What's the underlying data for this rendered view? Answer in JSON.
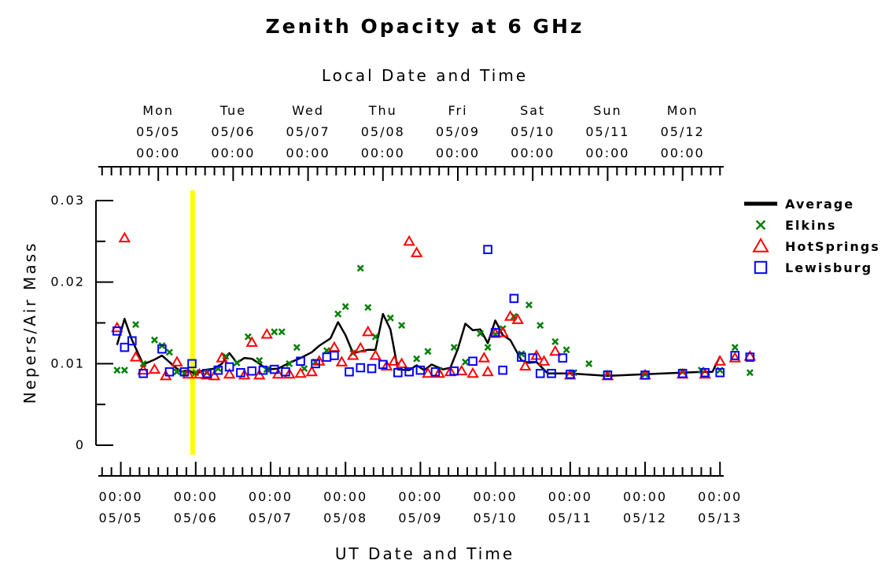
{
  "chart_data": {
    "type": "scatter",
    "title": "Zenith Opacity at 6 GHz",
    "top_axis_title": "Local Date and Time",
    "bottom_axis_title": "UT Date and Time",
    "ylabel": "Nepers/Air Mass",
    "ylim": [
      0,
      0.03
    ],
    "y_ticks": [
      {
        "value": 0,
        "label": "0"
      },
      {
        "value": 0.01,
        "label": "0.01"
      },
      {
        "value": 0.02,
        "label": "0.02"
      },
      {
        "value": 0.03,
        "label": "0.03"
      }
    ],
    "xlim": [
      "2025-05-04 16:00",
      "2025-05-13 00:00"
    ],
    "bottom_ticks": [
      {
        "day": 1,
        "time": "00:00",
        "date": "05/05"
      },
      {
        "day": 2,
        "time": "00:00",
        "date": "05/06"
      },
      {
        "day": 3,
        "time": "00:00",
        "date": "05/07"
      },
      {
        "day": 4,
        "time": "00:00",
        "date": "05/08"
      },
      {
        "day": 5,
        "time": "00:00",
        "date": "05/09"
      },
      {
        "day": 6,
        "time": "00:00",
        "date": "05/10"
      },
      {
        "day": 7,
        "time": "00:00",
        "date": "05/11"
      },
      {
        "day": 8,
        "time": "00:00",
        "date": "05/12"
      },
      {
        "day": 9,
        "time": "00:00",
        "date": "05/13"
      }
    ],
    "top_ticks": [
      {
        "day": 1.5,
        "weekday": "Mon",
        "date": "05/05",
        "time": "00:00"
      },
      {
        "day": 2.5,
        "weekday": "Tue",
        "date": "05/06",
        "time": "00:00"
      },
      {
        "day": 3.5,
        "weekday": "Wed",
        "date": "05/07",
        "time": "00:00"
      },
      {
        "day": 4.5,
        "weekday": "Thu",
        "date": "05/08",
        "time": "00:00"
      },
      {
        "day": 5.5,
        "weekday": "Fri",
        "date": "05/09",
        "time": "00:00"
      },
      {
        "day": 6.5,
        "weekday": "Sat",
        "date": "05/10",
        "time": "00:00"
      },
      {
        "day": 7.5,
        "weekday": "Sun",
        "date": "05/11",
        "time": "00:00"
      },
      {
        "day": 8.5,
        "weekday": "Mon",
        "date": "05/12",
        "time": "00:00"
      }
    ],
    "grid": false,
    "legend_position": "right",
    "current_time_marker": {
      "x": "2025-05-05 23:00",
      "color": "#ffff00"
    },
    "series": [
      {
        "name": "Average",
        "style": "line",
        "color": "#000000",
        "points": [
          [
            0.95,
            0.0123
          ],
          [
            1.05,
            0.0155
          ],
          [
            1.15,
            0.0129
          ],
          [
            1.3,
            0.0099
          ],
          [
            1.45,
            0.0105
          ],
          [
            1.55,
            0.011
          ],
          [
            1.65,
            0.0102
          ],
          [
            1.8,
            0.009
          ],
          [
            1.9,
            0.0092
          ],
          [
            2.0,
            0.0087
          ],
          [
            2.1,
            0.0092
          ],
          [
            2.25,
            0.0094
          ],
          [
            2.35,
            0.01
          ],
          [
            2.45,
            0.0113
          ],
          [
            2.55,
            0.0101
          ],
          [
            2.65,
            0.0107
          ],
          [
            2.75,
            0.0106
          ],
          [
            2.85,
            0.01
          ],
          [
            2.95,
            0.0093
          ],
          [
            3.1,
            0.0094
          ],
          [
            3.25,
            0.0101
          ],
          [
            3.4,
            0.0107
          ],
          [
            3.55,
            0.0114
          ],
          [
            3.65,
            0.0122
          ],
          [
            3.8,
            0.0131
          ],
          [
            3.9,
            0.0151
          ],
          [
            4.0,
            0.0135
          ],
          [
            4.1,
            0.0113
          ],
          [
            4.3,
            0.0117
          ],
          [
            4.4,
            0.0117
          ],
          [
            4.5,
            0.0161
          ],
          [
            4.6,
            0.0142
          ],
          [
            4.7,
            0.0093
          ],
          [
            4.85,
            0.0092
          ],
          [
            4.95,
            0.0098
          ],
          [
            5.05,
            0.0092
          ],
          [
            5.15,
            0.0099
          ],
          [
            5.3,
            0.0093
          ],
          [
            5.4,
            0.0095
          ],
          [
            5.5,
            0.0118
          ],
          [
            5.6,
            0.0149
          ],
          [
            5.7,
            0.0141
          ],
          [
            5.8,
            0.0142
          ],
          [
            5.9,
            0.0125
          ],
          [
            6.0,
            0.0153
          ],
          [
            6.1,
            0.0135
          ],
          [
            6.2,
            0.0129
          ],
          [
            6.35,
            0.0104
          ],
          [
            6.45,
            0.0101
          ],
          [
            6.55,
            0.0102
          ],
          [
            6.7,
            0.0088
          ],
          [
            7.0,
            0.0088
          ],
          [
            7.5,
            0.0085
          ],
          [
            8.0,
            0.0087
          ],
          [
            8.5,
            0.0089
          ],
          [
            8.8,
            0.009
          ],
          [
            8.9,
            0.009
          ],
          [
            9.0,
            0.0109
          ]
        ]
      },
      {
        "name": "Elkins",
        "style": "x",
        "color": "#008000",
        "points": [
          [
            0.95,
            0.0092
          ],
          [
            1.05,
            0.0092
          ],
          [
            1.2,
            0.0148
          ],
          [
            1.3,
            0.01
          ],
          [
            1.45,
            0.0129
          ],
          [
            1.55,
            0.0122
          ],
          [
            1.65,
            0.0114
          ],
          [
            1.75,
            0.009
          ],
          [
            1.85,
            0.0088
          ],
          [
            2.0,
            0.0089
          ],
          [
            2.15,
            0.0089
          ],
          [
            2.3,
            0.0094
          ],
          [
            2.4,
            0.0109
          ],
          [
            2.55,
            0.0101
          ],
          [
            2.7,
            0.0133
          ],
          [
            2.85,
            0.0104
          ],
          [
            2.95,
            0.0093
          ],
          [
            3.05,
            0.0139
          ],
          [
            3.15,
            0.0139
          ],
          [
            3.25,
            0.01
          ],
          [
            3.35,
            0.012
          ],
          [
            3.45,
            0.0094
          ],
          [
            3.6,
            0.0102
          ],
          [
            3.75,
            0.0116
          ],
          [
            3.9,
            0.0161
          ],
          [
            4.0,
            0.017
          ],
          [
            4.1,
            0.0113
          ],
          [
            4.2,
            0.0217
          ],
          [
            4.3,
            0.0169
          ],
          [
            4.4,
            0.0133
          ],
          [
            4.6,
            0.0156
          ],
          [
            4.75,
            0.0147
          ],
          [
            4.95,
            0.0106
          ],
          [
            5.1,
            0.0115
          ],
          [
            5.25,
            0.0092
          ],
          [
            5.45,
            0.012
          ],
          [
            5.6,
            0.0102
          ],
          [
            5.8,
            0.0137
          ],
          [
            5.9,
            0.012
          ],
          [
            6.0,
            0.0136
          ],
          [
            6.1,
            0.0143
          ],
          [
            6.25,
            0.0158
          ],
          [
            6.35,
            0.0112
          ],
          [
            6.45,
            0.0172
          ],
          [
            6.6,
            0.0147
          ],
          [
            6.8,
            0.0127
          ],
          [
            6.95,
            0.0117
          ],
          [
            7.05,
            0.0089
          ],
          [
            7.25,
            0.01
          ],
          [
            7.5,
            0.0088
          ],
          [
            8.0,
            0.0087
          ],
          [
            8.5,
            0.009
          ],
          [
            8.75,
            0.0092
          ],
          [
            9.0,
            0.0092
          ],
          [
            9.2,
            0.012
          ],
          [
            9.4,
            0.0089
          ]
        ]
      },
      {
        "name": "HotSprings",
        "style": "triangle",
        "color": "#ff0000",
        "points": [
          [
            0.95,
            0.0144
          ],
          [
            1.05,
            0.0254
          ],
          [
            1.2,
            0.0108
          ],
          [
            1.3,
            0.0092
          ],
          [
            1.45,
            0.0093
          ],
          [
            1.6,
            0.0085
          ],
          [
            1.75,
            0.0102
          ],
          [
            1.9,
            0.0087
          ],
          [
            2.05,
            0.0087
          ],
          [
            2.15,
            0.0086
          ],
          [
            2.25,
            0.0085
          ],
          [
            2.35,
            0.0107
          ],
          [
            2.45,
            0.0087
          ],
          [
            2.65,
            0.0086
          ],
          [
            2.75,
            0.0126
          ],
          [
            2.85,
            0.0086
          ],
          [
            2.95,
            0.0136
          ],
          [
            3.1,
            0.0087
          ],
          [
            3.25,
            0.0087
          ],
          [
            3.4,
            0.0088
          ],
          [
            3.55,
            0.009
          ],
          [
            3.65,
            0.0103
          ],
          [
            3.85,
            0.012
          ],
          [
            3.95,
            0.0102
          ],
          [
            4.1,
            0.011
          ],
          [
            4.2,
            0.0119
          ],
          [
            4.3,
            0.0139
          ],
          [
            4.4,
            0.011
          ],
          [
            4.55,
            0.0097
          ],
          [
            4.65,
            0.0103
          ],
          [
            4.75,
            0.01
          ],
          [
            4.85,
            0.025
          ],
          [
            4.95,
            0.0236
          ],
          [
            5.1,
            0.0088
          ],
          [
            5.25,
            0.0088
          ],
          [
            5.4,
            0.009
          ],
          [
            5.55,
            0.0091
          ],
          [
            5.7,
            0.0088
          ],
          [
            5.85,
            0.0107
          ],
          [
            5.9,
            0.009
          ],
          [
            6.0,
            0.0137
          ],
          [
            6.1,
            0.0138
          ],
          [
            6.2,
            0.0158
          ],
          [
            6.3,
            0.0154
          ],
          [
            6.4,
            0.0097
          ],
          [
            6.55,
            0.011
          ],
          [
            6.65,
            0.0103
          ],
          [
            6.8,
            0.0115
          ],
          [
            7.0,
            0.0086
          ],
          [
            7.5,
            0.0085
          ],
          [
            8.0,
            0.0086
          ],
          [
            8.5,
            0.0087
          ],
          [
            8.8,
            0.0087
          ],
          [
            9.0,
            0.0103
          ],
          [
            9.2,
            0.0107
          ],
          [
            9.4,
            0.0109
          ]
        ]
      },
      {
        "name": "Lewisburg",
        "style": "square",
        "color": "#0000ff",
        "points": [
          [
            0.95,
            0.014
          ],
          [
            1.05,
            0.012
          ],
          [
            1.15,
            0.0128
          ],
          [
            1.3,
            0.0088
          ],
          [
            1.55,
            0.0118
          ],
          [
            1.65,
            0.009
          ],
          [
            1.85,
            0.009
          ],
          [
            1.95,
            0.01
          ],
          [
            2.15,
            0.0088
          ],
          [
            2.3,
            0.0092
          ],
          [
            2.45,
            0.0096
          ],
          [
            2.6,
            0.0089
          ],
          [
            2.75,
            0.0091
          ],
          [
            2.9,
            0.0092
          ],
          [
            3.05,
            0.0093
          ],
          [
            3.2,
            0.009
          ],
          [
            3.4,
            0.0103
          ],
          [
            3.6,
            0.01
          ],
          [
            3.75,
            0.0108
          ],
          [
            3.85,
            0.011
          ],
          [
            4.05,
            0.009
          ],
          [
            4.2,
            0.0095
          ],
          [
            4.35,
            0.0094
          ],
          [
            4.5,
            0.0099
          ],
          [
            4.7,
            0.0089
          ],
          [
            4.85,
            0.009
          ],
          [
            5.0,
            0.0092
          ],
          [
            5.2,
            0.009
          ],
          [
            5.45,
            0.0091
          ],
          [
            5.7,
            0.0103
          ],
          [
            5.9,
            0.024
          ],
          [
            6.0,
            0.0138
          ],
          [
            6.1,
            0.0092
          ],
          [
            6.25,
            0.018
          ],
          [
            6.35,
            0.0108
          ],
          [
            6.5,
            0.0107
          ],
          [
            6.6,
            0.0088
          ],
          [
            6.75,
            0.0088
          ],
          [
            6.9,
            0.0107
          ],
          [
            7.0,
            0.0087
          ],
          [
            7.5,
            0.0086
          ],
          [
            8.0,
            0.0086
          ],
          [
            8.5,
            0.0088
          ],
          [
            8.8,
            0.0089
          ],
          [
            9.0,
            0.0089
          ],
          [
            9.2,
            0.011
          ],
          [
            9.4,
            0.0108
          ]
        ]
      }
    ]
  }
}
